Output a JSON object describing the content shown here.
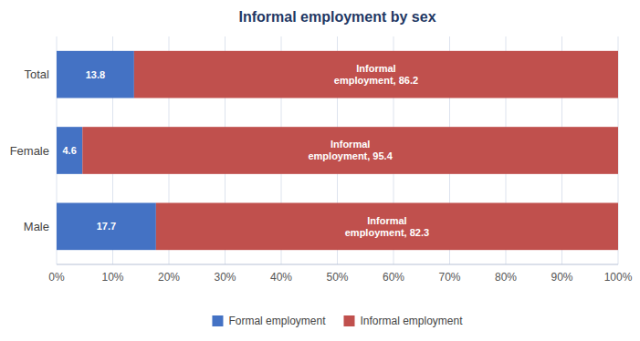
{
  "chart_data": {
    "type": "bar",
    "orientation": "horizontal",
    "stacked": true,
    "title": "Informal employment by sex",
    "categories": [
      "Male",
      "Female",
      "Total"
    ],
    "series": [
      {
        "name": "Formal employment",
        "color": "#4472C4",
        "values": [
          17.7,
          4.6,
          13.8
        ]
      },
      {
        "name": "Informal employment",
        "color": "#C0504D",
        "values": [
          82.3,
          95.4,
          86.2
        ],
        "value_labels": [
          "Informal\nemployment, 82.3",
          "Informal\nemployment, 95.4",
          "Informal\nemployment, 86.2"
        ]
      }
    ],
    "xlim": [
      0,
      100
    ],
    "xticks": [
      {
        "value": 0,
        "label": "0%"
      },
      {
        "value": 10,
        "label": "10%"
      },
      {
        "value": 20,
        "label": "20%"
      },
      {
        "value": 30,
        "label": "30%"
      },
      {
        "value": 40,
        "label": "40%"
      },
      {
        "value": 50,
        "label": "50%"
      },
      {
        "value": 60,
        "label": "60%"
      },
      {
        "value": 70,
        "label": "70%"
      },
      {
        "value": 80,
        "label": "80%"
      },
      {
        "value": 90,
        "label": "90%"
      },
      {
        "value": 100,
        "label": "100%"
      }
    ],
    "grid": true,
    "data_labels": true,
    "legend": "bottom"
  }
}
